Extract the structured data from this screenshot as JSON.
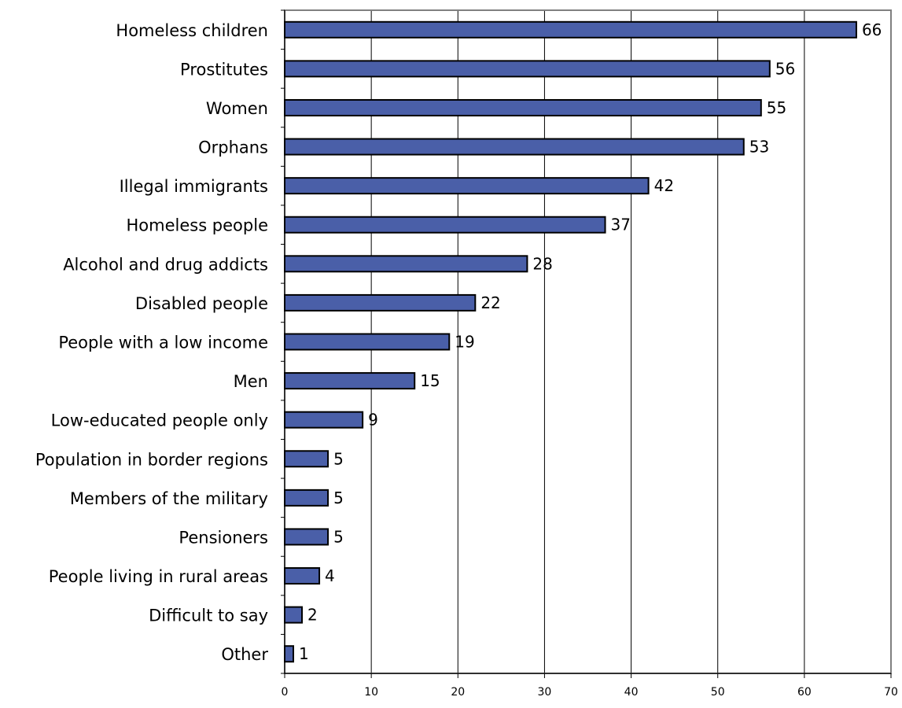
{
  "chart_data": {
    "type": "bar",
    "orientation": "horizontal",
    "title": "",
    "xlabel": "",
    "ylabel": "",
    "categories": [
      "Homeless children",
      "Prostitutes",
      "Women",
      "Orphans",
      "Illegal immigrants",
      "Homeless people",
      "Alcohol and drug addicts",
      "Disabled people",
      "People with a low income",
      "Men",
      "Low-educated people only",
      "Population in border regions",
      "Members of the military",
      "Pensioners",
      "People living in rural areas",
      "Difficult to say",
      "Other"
    ],
    "values": [
      66,
      56,
      55,
      53,
      42,
      37,
      28,
      22,
      19,
      15,
      9,
      5,
      5,
      5,
      4,
      2,
      1
    ],
    "xlim": [
      0,
      70
    ],
    "x_ticks": [
      0,
      10,
      20,
      30,
      40,
      50,
      60,
      70
    ],
    "data_labels": true,
    "grid": "vertical",
    "legend": "none",
    "bar_color": "#4A5FA8",
    "bar_edge_color": "#000000"
  }
}
